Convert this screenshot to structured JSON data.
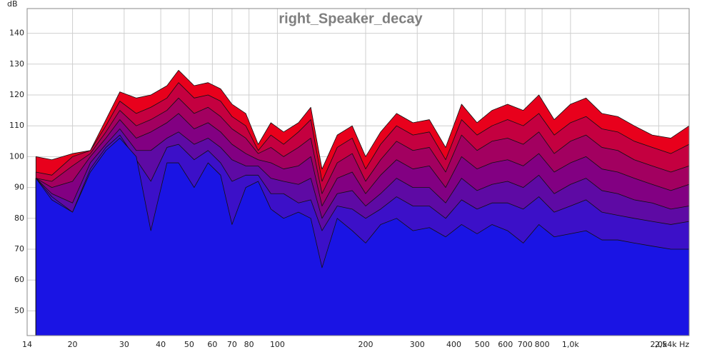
{
  "chart_data": {
    "type": "area",
    "title": "right_Speaker_decay",
    "y_unit": "dB",
    "xscale": "log",
    "grid": true,
    "xlim": [
      14,
      2540
    ],
    "ylim": [
      42,
      148
    ],
    "yticks": [
      50,
      60,
      70,
      80,
      90,
      100,
      110,
      120,
      130,
      140
    ],
    "xticks": [
      14,
      20,
      30,
      40,
      50,
      60,
      70,
      80,
      100,
      200,
      300,
      400,
      500,
      600,
      700,
      800,
      {
        "value": 1000,
        "label": "1,0k"
      },
      {
        "value": 2000,
        "label": "2,0k"
      },
      {
        "value": 2540,
        "label": "2,54k Hz"
      }
    ],
    "x": [
      15,
      17,
      20,
      23,
      26,
      29,
      33,
      37,
      42,
      46,
      52,
      58,
      64,
      70,
      78,
      86,
      95,
      105,
      118,
      130,
      142,
      160,
      180,
      200,
      225,
      255,
      290,
      330,
      375,
      425,
      480,
      540,
      610,
      690,
      780,
      880,
      1000,
      1130,
      1280,
      1450,
      1650,
      1900,
      2200,
      2540
    ],
    "series": [
      {
        "color": "#e8001c",
        "values": [
          100,
          99,
          101,
          102,
          112,
          121,
          119,
          120,
          123,
          128,
          123,
          124,
          122,
          117,
          114,
          104,
          111,
          108,
          111,
          116,
          96,
          107,
          110,
          100,
          108,
          114,
          111,
          112,
          103,
          117,
          111,
          115,
          117,
          115,
          120,
          112,
          117,
          119,
          114,
          113,
          110,
          107,
          106,
          110
        ]
      },
      {
        "color": "#c40040",
        "values": [
          95,
          94,
          100,
          102,
          110,
          118,
          114,
          116,
          119,
          124,
          119,
          120,
          118,
          113,
          110,
          102,
          107,
          104,
          108,
          112,
          92,
          103,
          106,
          96,
          104,
          110,
          107,
          108,
          99,
          112,
          107,
          110,
          112,
          110,
          114,
          107,
          111,
          113,
          109,
          108,
          105,
          103,
          101,
          104
        ]
      },
      {
        "color": "#a20060",
        "values": [
          93,
          92,
          97,
          101,
          108,
          115,
          110,
          112,
          115,
          119,
          114,
          116,
          113,
          109,
          106,
          101,
          103,
          100,
          103,
          106,
          88,
          98,
          101,
          92,
          99,
          105,
          102,
          103,
          95,
          107,
          102,
          105,
          106,
          104,
          108,
          101,
          105,
          107,
          103,
          102,
          99,
          97,
          95,
          97
        ]
      },
      {
        "color": "#820082",
        "values": [
          93,
          90,
          92,
          100,
          106,
          112,
          106,
          108,
          111,
          114,
          109,
          111,
          108,
          104,
          101,
          99,
          98,
          96,
          97,
          100,
          84,
          93,
          95,
          88,
          94,
          99,
          96,
          97,
          90,
          100,
          96,
          98,
          99,
          97,
          101,
          95,
          98,
          100,
          96,
          95,
          93,
          91,
          89,
          91
        ]
      },
      {
        "color": "#5e0aa4",
        "values": [
          93,
          88,
          85,
          98,
          104,
          109,
          102,
          102,
          106,
          108,
          104,
          106,
          103,
          99,
          97,
          97,
          93,
          92,
          91,
          93,
          80,
          88,
          89,
          84,
          88,
          93,
          90,
          90,
          85,
          93,
          89,
          91,
          92,
          90,
          94,
          88,
          91,
          93,
          89,
          88,
          86,
          85,
          83,
          84
        ]
      },
      {
        "color": "#3c10c8",
        "values": [
          93,
          87,
          82,
          96,
          103,
          107,
          99,
          92,
          103,
          104,
          99,
          102,
          98,
          92,
          94,
          94,
          88,
          88,
          85,
          86,
          76,
          84,
          83,
          80,
          83,
          87,
          84,
          84,
          80,
          86,
          83,
          85,
          85,
          83,
          87,
          82,
          84,
          86,
          82,
          81,
          80,
          79,
          78,
          79
        ]
      },
      {
        "color": "#1a14e4",
        "values": [
          93,
          86,
          82,
          95,
          102,
          106,
          100,
          76,
          98,
          98,
          90,
          98,
          94,
          78,
          90,
          92,
          83,
          80,
          82,
          80,
          64,
          80,
          76,
          72,
          78,
          80,
          76,
          77,
          74,
          78,
          75,
          78,
          76,
          72,
          78,
          74,
          75,
          76,
          73,
          73,
          72,
          71,
          70,
          70
        ]
      }
    ]
  }
}
